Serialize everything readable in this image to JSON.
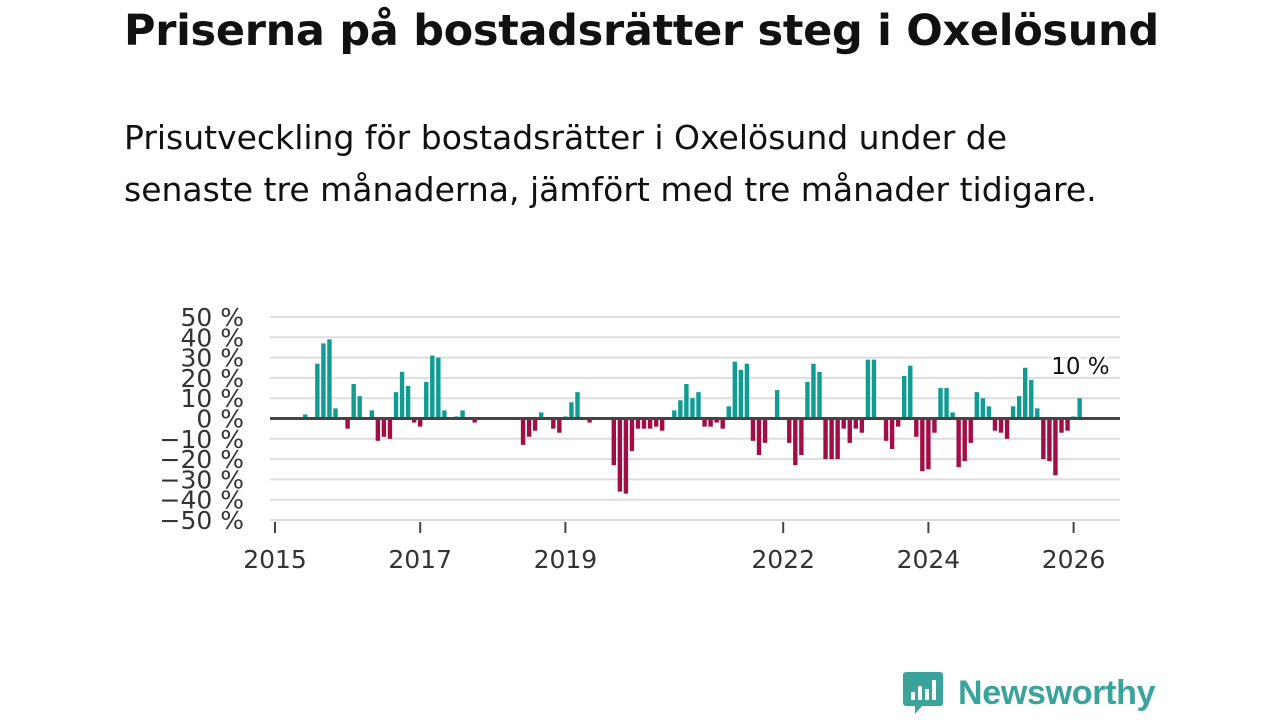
{
  "title": "Priserna på bostadsrätter steg i Oxelösund",
  "subtitle": "Prisutveckling för bostadsrätter i Oxelösund under de senaste tre månaderna, jämfört med tre månader tidigare.",
  "brand": {
    "name": "Newsworthy",
    "logo_icon": "bar-chart-speech-bubble-icon",
    "color": "#3aa39b"
  },
  "colors": {
    "positive": "#119c93",
    "negative": "#a10d45",
    "zero_line": "#444444",
    "grid": "#dddddd"
  },
  "chart_data": {
    "type": "bar",
    "title": "Priserna på bostadsrätter steg i Oxelösund",
    "xlabel": "",
    "ylabel": "",
    "ylim": [
      -50,
      50
    ],
    "yticks": [
      50,
      40,
      30,
      20,
      10,
      0,
      -10,
      -20,
      -30,
      -40,
      -50
    ],
    "ytick_labels": [
      "50 %",
      "40 %",
      "30 %",
      "20 %",
      "10 %",
      "0 %",
      "−10 %",
      "−20 %",
      "−30 %",
      "−40 %",
      "−50 %"
    ],
    "xticks": [
      {
        "label": "2015",
        "date": "2015-01"
      },
      {
        "label": "2017",
        "date": "2017-01"
      },
      {
        "label": "2019",
        "date": "2019-01"
      },
      {
        "label": "2022",
        "date": "2022-01"
      },
      {
        "label": "2024",
        "date": "2024-01"
      },
      {
        "label": "2026",
        "date": "2026-01"
      }
    ],
    "start_month": "2015-01",
    "grid": true,
    "annotation": {
      "label": "10 %",
      "date": "2026-02",
      "value": 10
    },
    "series": [
      {
        "name": "Prisutveckling",
        "points": [
          {
            "date": "2015-06",
            "value": 2
          },
          {
            "date": "2015-08",
            "value": 27
          },
          {
            "date": "2015-09",
            "value": 37
          },
          {
            "date": "2015-10",
            "value": 39
          },
          {
            "date": "2015-11",
            "value": 5
          },
          {
            "date": "2016-01",
            "value": -5
          },
          {
            "date": "2016-02",
            "value": 17
          },
          {
            "date": "2016-03",
            "value": 11
          },
          {
            "date": "2016-05",
            "value": 4
          },
          {
            "date": "2016-06",
            "value": -11
          },
          {
            "date": "2016-07",
            "value": -9
          },
          {
            "date": "2016-08",
            "value": -10
          },
          {
            "date": "2016-09",
            "value": 13
          },
          {
            "date": "2016-10",
            "value": 23
          },
          {
            "date": "2016-11",
            "value": 16
          },
          {
            "date": "2016-12",
            "value": -2
          },
          {
            "date": "2017-01",
            "value": -4
          },
          {
            "date": "2017-02",
            "value": 18
          },
          {
            "date": "2017-03",
            "value": 31
          },
          {
            "date": "2017-04",
            "value": 30
          },
          {
            "date": "2017-05",
            "value": 4
          },
          {
            "date": "2017-07",
            "value": 1
          },
          {
            "date": "2017-08",
            "value": 4
          },
          {
            "date": "2017-10",
            "value": -2
          },
          {
            "date": "2018-06",
            "value": -13
          },
          {
            "date": "2018-07",
            "value": -9
          },
          {
            "date": "2018-08",
            "value": -6
          },
          {
            "date": "2018-09",
            "value": 3
          },
          {
            "date": "2018-11",
            "value": -5
          },
          {
            "date": "2018-12",
            "value": -7
          },
          {
            "date": "2019-01",
            "value": 1
          },
          {
            "date": "2019-02",
            "value": 8
          },
          {
            "date": "2019-03",
            "value": 13
          },
          {
            "date": "2019-05",
            "value": -2
          },
          {
            "date": "2019-09",
            "value": -23
          },
          {
            "date": "2019-10",
            "value": -36
          },
          {
            "date": "2019-11",
            "value": -37
          },
          {
            "date": "2019-12",
            "value": -16
          },
          {
            "date": "2020-01",
            "value": -5
          },
          {
            "date": "2020-02",
            "value": -5
          },
          {
            "date": "2020-03",
            "value": -5
          },
          {
            "date": "2020-04",
            "value": -4
          },
          {
            "date": "2020-05",
            "value": -6
          },
          {
            "date": "2020-07",
            "value": 4
          },
          {
            "date": "2020-08",
            "value": 9
          },
          {
            "date": "2020-09",
            "value": 17
          },
          {
            "date": "2020-10",
            "value": 10
          },
          {
            "date": "2020-11",
            "value": 13
          },
          {
            "date": "2020-12",
            "value": -4
          },
          {
            "date": "2021-01",
            "value": -4
          },
          {
            "date": "2021-02",
            "value": -2
          },
          {
            "date": "2021-03",
            "value": -5
          },
          {
            "date": "2021-04",
            "value": 6
          },
          {
            "date": "2021-05",
            "value": 28
          },
          {
            "date": "2021-06",
            "value": 24
          },
          {
            "date": "2021-07",
            "value": 27
          },
          {
            "date": "2021-08",
            "value": -11
          },
          {
            "date": "2021-09",
            "value": -18
          },
          {
            "date": "2021-10",
            "value": -12
          },
          {
            "date": "2021-12",
            "value": 14
          },
          {
            "date": "2022-02",
            "value": -12
          },
          {
            "date": "2022-03",
            "value": -23
          },
          {
            "date": "2022-04",
            "value": -18
          },
          {
            "date": "2022-05",
            "value": 18
          },
          {
            "date": "2022-06",
            "value": 27
          },
          {
            "date": "2022-07",
            "value": 23
          },
          {
            "date": "2022-08",
            "value": -20
          },
          {
            "date": "2022-09",
            "value": -20
          },
          {
            "date": "2022-10",
            "value": -20
          },
          {
            "date": "2022-11",
            "value": -5
          },
          {
            "date": "2022-12",
            "value": -12
          },
          {
            "date": "2023-01",
            "value": -5
          },
          {
            "date": "2023-02",
            "value": -7
          },
          {
            "date": "2023-03",
            "value": 29
          },
          {
            "date": "2023-04",
            "value": 29
          },
          {
            "date": "2023-06",
            "value": -11
          },
          {
            "date": "2023-07",
            "value": -15
          },
          {
            "date": "2023-08",
            "value": -4
          },
          {
            "date": "2023-09",
            "value": 21
          },
          {
            "date": "2023-10",
            "value": 26
          },
          {
            "date": "2023-11",
            "value": -9
          },
          {
            "date": "2023-12",
            "value": -26
          },
          {
            "date": "2024-01",
            "value": -25
          },
          {
            "date": "2024-02",
            "value": -7
          },
          {
            "date": "2024-03",
            "value": 15
          },
          {
            "date": "2024-04",
            "value": 15
          },
          {
            "date": "2024-05",
            "value": 3
          },
          {
            "date": "2024-06",
            "value": -24
          },
          {
            "date": "2024-07",
            "value": -21
          },
          {
            "date": "2024-08",
            "value": -12
          },
          {
            "date": "2024-09",
            "value": 13
          },
          {
            "date": "2024-10",
            "value": 10
          },
          {
            "date": "2024-11",
            "value": 6
          },
          {
            "date": "2024-12",
            "value": -6
          },
          {
            "date": "2025-01",
            "value": -7
          },
          {
            "date": "2025-02",
            "value": -10
          },
          {
            "date": "2025-03",
            "value": 6
          },
          {
            "date": "2025-04",
            "value": 11
          },
          {
            "date": "2025-05",
            "value": 25
          },
          {
            "date": "2025-06",
            "value": 19
          },
          {
            "date": "2025-07",
            "value": 5
          },
          {
            "date": "2025-08",
            "value": -20
          },
          {
            "date": "2025-09",
            "value": -21
          },
          {
            "date": "2025-10",
            "value": -28
          },
          {
            "date": "2025-11",
            "value": -7
          },
          {
            "date": "2025-12",
            "value": -6
          },
          {
            "date": "2026-01",
            "value": 1
          },
          {
            "date": "2026-02",
            "value": 10
          }
        ]
      }
    ]
  }
}
